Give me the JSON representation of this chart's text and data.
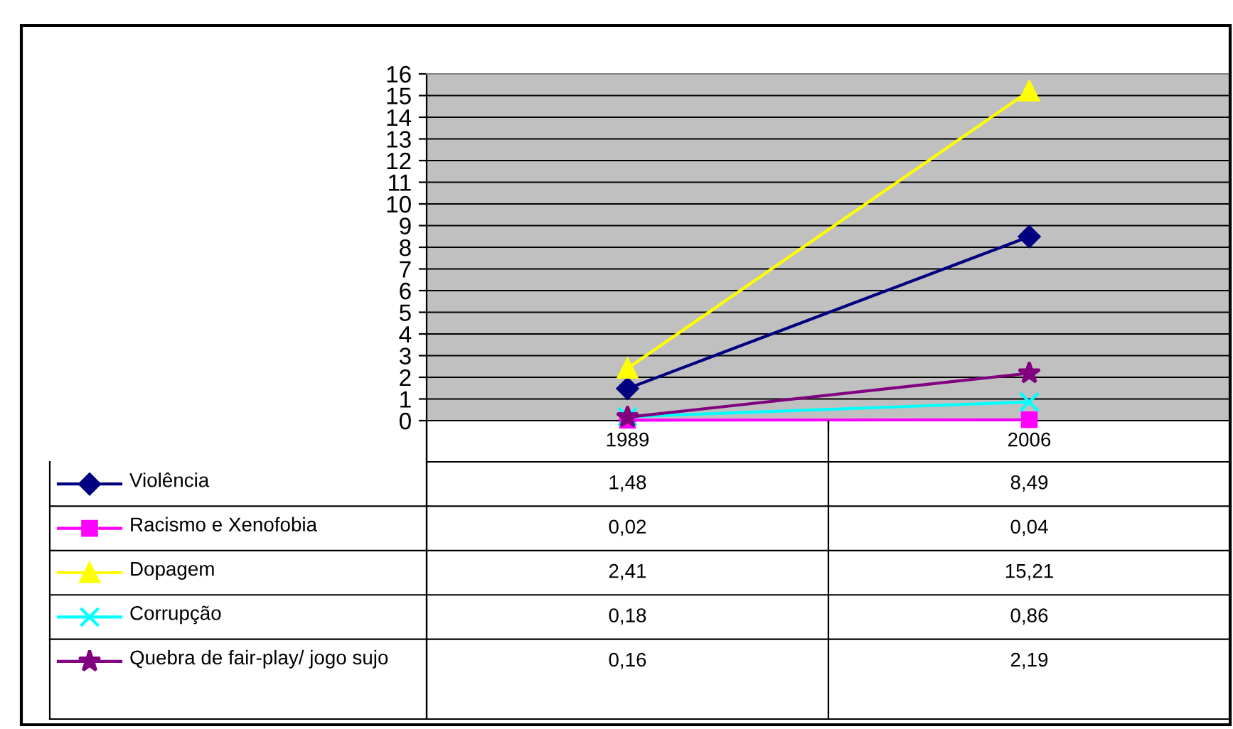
{
  "chart_data": {
    "type": "line",
    "categories": [
      "1989",
      "2006"
    ],
    "series": [
      {
        "name": "Violência",
        "color": "#000080",
        "marker": "diamond",
        "values": [
          1.48,
          8.49
        ],
        "value_labels": [
          "1,48",
          "8,49"
        ]
      },
      {
        "name": "Racismo e Xenofobia",
        "color": "#ff00ff",
        "marker": "square",
        "values": [
          0.02,
          0.04
        ],
        "value_labels": [
          "0,02",
          "0,04"
        ]
      },
      {
        "name": "Dopagem",
        "color": "#ffff00",
        "marker": "triangle",
        "values": [
          2.41,
          15.21
        ],
        "value_labels": [
          "2,41",
          "15,21"
        ]
      },
      {
        "name": "Corrupção",
        "color": "#00ffff",
        "marker": "cross",
        "values": [
          0.18,
          0.86
        ],
        "value_labels": [
          "0,18",
          "0,86"
        ]
      },
      {
        "name": "Quebra de fair-play/ jogo sujo",
        "color": "#800080",
        "marker": "star",
        "values": [
          0.16,
          2.19
        ],
        "value_labels": [
          "0,16",
          "2,19"
        ]
      }
    ],
    "ylim": [
      0,
      16
    ],
    "yticks": [
      0,
      1,
      2,
      3,
      4,
      5,
      6,
      7,
      8,
      9,
      10,
      11,
      12,
      13,
      14,
      15,
      16
    ],
    "grid": "y",
    "legend": "bottom"
  }
}
